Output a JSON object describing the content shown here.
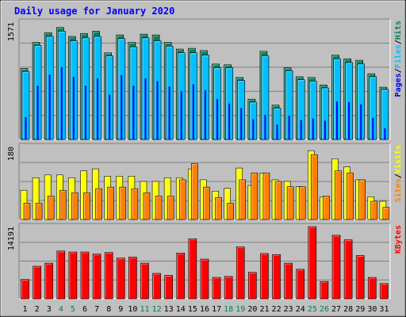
{
  "title": "Daily usage for January 2020",
  "colors": {
    "background": "#c0c0c0",
    "plot_background": "#c0c0c0",
    "grid": "#808080",
    "title": "#0000ff",
    "axis_text": "#000000",
    "weekend_label": "#00805c",
    "hits": "#00805c",
    "files": "#00c0ff",
    "pages": "#0000ff",
    "visits": "#ffff00",
    "sites": "#ff8000",
    "kbytes": "#ff0000"
  },
  "chart_data": [
    {
      "type": "bar",
      "title": "Daily usage for January 2020",
      "categories": [
        "1",
        "2",
        "3",
        "4",
        "5",
        "6",
        "7",
        "8",
        "9",
        "10",
        "11",
        "12",
        "13",
        "14",
        "15",
        "16",
        "17",
        "18",
        "19",
        "20",
        "21",
        "22",
        "23",
        "24",
        "25",
        "26",
        "27",
        "28",
        "29",
        "30",
        "31"
      ],
      "weekend_days": [
        "4",
        "5",
        "11",
        "12",
        "18",
        "19",
        "25",
        "26"
      ],
      "ymax_label": "1571",
      "right_label": [
        "Pages",
        "Files",
        "Hits"
      ],
      "ylim": [
        0,
        1571
      ],
      "grid": true,
      "series": [
        {
          "name": "Hits",
          "color": "#00805c",
          "values": [
            950,
            1300,
            1430,
            1500,
            1380,
            1420,
            1450,
            1160,
            1400,
            1300,
            1410,
            1400,
            1300,
            1210,
            1220,
            1190,
            1010,
            1000,
            830,
            540,
            1180,
            460,
            960,
            840,
            830,
            730,
            1130,
            1080,
            1060,
            880,
            700
          ]
        },
        {
          "name": "Files",
          "color": "#00c0ff",
          "values": [
            910,
            1260,
            1380,
            1450,
            1320,
            1360,
            1380,
            1120,
            1350,
            1240,
            1360,
            1320,
            1250,
            1160,
            1160,
            1130,
            960,
            960,
            790,
            500,
            1120,
            420,
            920,
            800,
            780,
            690,
            1080,
            1030,
            1010,
            840,
            670
          ]
        },
        {
          "name": "Pages",
          "color": "#0000ff",
          "values": [
            300,
            720,
            870,
            970,
            840,
            720,
            820,
            600,
            860,
            720,
            820,
            780,
            710,
            650,
            740,
            660,
            540,
            480,
            420,
            270,
            330,
            200,
            320,
            260,
            280,
            250,
            510,
            500,
            470,
            290,
            150
          ]
        }
      ]
    },
    {
      "type": "bar",
      "categories": [
        "1",
        "2",
        "3",
        "4",
        "5",
        "6",
        "7",
        "8",
        "9",
        "10",
        "11",
        "12",
        "13",
        "14",
        "15",
        "16",
        "17",
        "18",
        "19",
        "20",
        "21",
        "22",
        "23",
        "24",
        "25",
        "26",
        "27",
        "28",
        "29",
        "30",
        "31"
      ],
      "ymax_label": "180",
      "right_label": [
        "Sites",
        "Visits"
      ],
      "ylim": [
        0,
        180
      ],
      "grid": true,
      "series": [
        {
          "name": "Visits",
          "color": "#ffff00",
          "values": [
            72,
            103,
            110,
            110,
            103,
            120,
            125,
            107,
            107,
            107,
            94,
            94,
            103,
            103,
            125,
            98,
            70,
            77,
            127,
            84,
            115,
            98,
            94,
            81,
            170,
            56,
            150,
            130,
            98,
            56,
            45
          ]
        },
        {
          "name": "Sites",
          "color": "#ff8000",
          "values": [
            40,
            40,
            58,
            72,
            66,
            66,
            76,
            80,
            80,
            76,
            66,
            58,
            58,
            98,
            138,
            80,
            54,
            40,
            98,
            115,
            115,
            94,
            81,
            81,
            160,
            58,
            120,
            115,
            98,
            45,
            30
          ]
        }
      ]
    },
    {
      "type": "bar",
      "categories": [
        "1",
        "2",
        "3",
        "4",
        "5",
        "6",
        "7",
        "8",
        "9",
        "10",
        "11",
        "12",
        "13",
        "14",
        "15",
        "16",
        "17",
        "18",
        "19",
        "20",
        "21",
        "22",
        "23",
        "24",
        "25",
        "26",
        "27",
        "28",
        "29",
        "30",
        "31"
      ],
      "ymax_label": "14191",
      "right_label": [
        "KBytes"
      ],
      "ylim": [
        0,
        14191
      ],
      "grid": true,
      "series": [
        {
          "name": "KBytes",
          "color": "#ff0000",
          "values": [
            3800,
            6400,
            7000,
            9400,
            9200,
            9200,
            8800,
            9100,
            8000,
            8200,
            7000,
            5000,
            4600,
            9000,
            11800,
            7800,
            4200,
            4400,
            10200,
            5200,
            8900,
            8700,
            7000,
            5800,
            14191,
            3400,
            12500,
            11600,
            8500,
            4200,
            3000
          ]
        }
      ]
    }
  ]
}
